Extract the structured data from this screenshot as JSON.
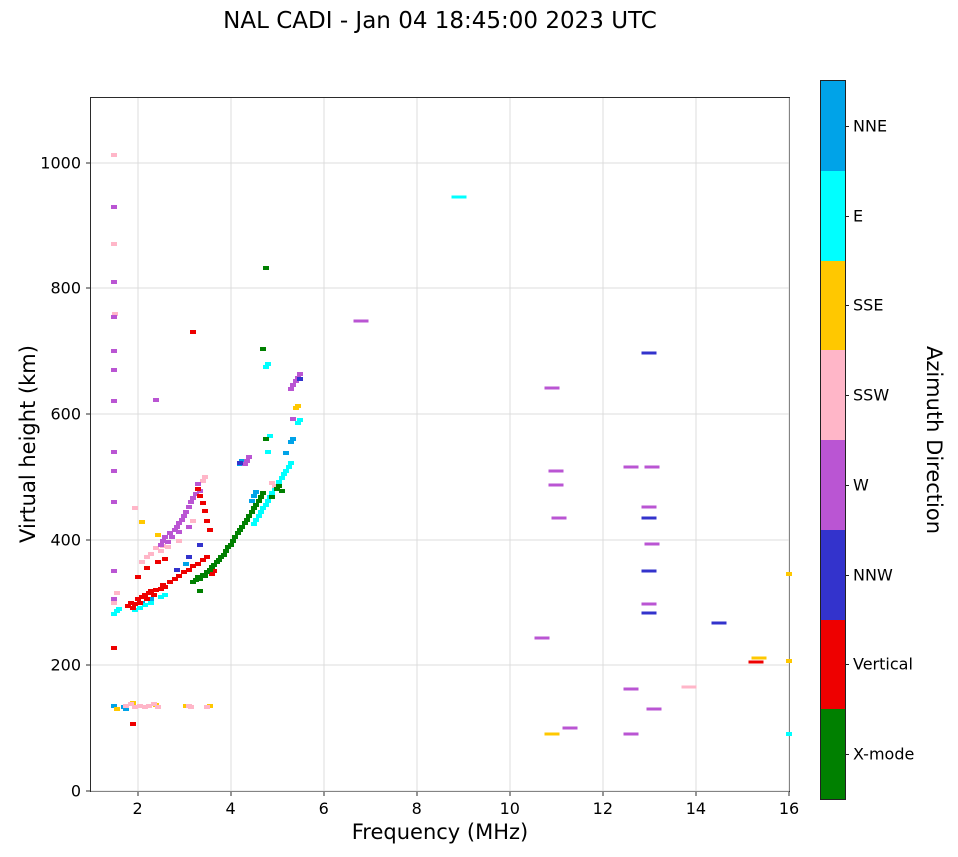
{
  "chart_data": {
    "type": "scatter",
    "title": "NAL CADI - Jan 04 18:45:00 2023 UTC",
    "xlabel": "Frequency (MHz)",
    "ylabel": "Virtual height (km)",
    "xlim": [
      1,
      16
    ],
    "ylim": [
      0,
      1103
    ],
    "xticks": [
      2,
      4,
      6,
      8,
      10,
      12,
      14,
      16
    ],
    "yticks": [
      0,
      200,
      400,
      600,
      800,
      1000
    ],
    "grid": true,
    "point_units": {
      "x": "MHz",
      "y": "km"
    },
    "legend": {
      "title": "Azimuth Direction",
      "position": "right",
      "entries": [
        {
          "label": "NNE",
          "color": "#00A3E8"
        },
        {
          "label": "E",
          "color": "#00FFFF"
        },
        {
          "label": "SSE",
          "color": "#FFC800"
        },
        {
          "label": "SSW",
          "color": "#FFB6C8"
        },
        {
          "label": "W",
          "color": "#BA55D3"
        },
        {
          "label": "NNW",
          "color": "#3333CC"
        },
        {
          "label": "Vertical",
          "color": "#EE0000"
        },
        {
          "label": "X-mode",
          "color": "#008000"
        }
      ]
    },
    "series": [
      {
        "name": "NNE",
        "color": "#00A3E8",
        "points": [
          [
            1.5,
            135
          ],
          [
            1.7,
            133
          ],
          [
            1.75,
            130
          ],
          [
            2.1,
            300
          ],
          [
            2.3,
            306
          ],
          [
            3.05,
            362
          ],
          [
            4.2,
            520
          ],
          [
            4.25,
            526
          ],
          [
            4.45,
            462
          ],
          [
            4.5,
            470
          ],
          [
            4.55,
            476
          ],
          [
            5.2,
            538
          ],
          [
            5.3,
            556
          ],
          [
            5.35,
            560
          ]
        ]
      },
      {
        "name": "E",
        "color": "#00FFFF",
        "points": [
          [
            1.5,
            282
          ],
          [
            1.55,
            286
          ],
          [
            1.6,
            290
          ],
          [
            1.95,
            288
          ],
          [
            2.05,
            292
          ],
          [
            2.15,
            296
          ],
          [
            2.3,
            300
          ],
          [
            2.5,
            308
          ],
          [
            2.6,
            312
          ],
          [
            4.5,
            425
          ],
          [
            4.55,
            432
          ],
          [
            4.6,
            438
          ],
          [
            4.65,
            444
          ],
          [
            4.7,
            450
          ],
          [
            4.75,
            456
          ],
          [
            4.8,
            462
          ],
          [
            4.85,
            468
          ],
          [
            4.9,
            474
          ],
          [
            4.95,
            480
          ],
          [
            5.0,
            486
          ],
          [
            5.05,
            492
          ],
          [
            5.1,
            498
          ],
          [
            5.15,
            504
          ],
          [
            5.2,
            510
          ],
          [
            5.25,
            516
          ],
          [
            5.3,
            522
          ],
          [
            4.8,
            540
          ],
          [
            4.85,
            565
          ],
          [
            5.45,
            585
          ],
          [
            5.5,
            590
          ],
          [
            4.75,
            675
          ],
          [
            4.8,
            680
          ],
          [
            8.9,
            945,
            1
          ],
          [
            16.0,
            90
          ]
        ]
      },
      {
        "name": "SSE",
        "color": "#FFC800",
        "points": [
          [
            1.55,
            130
          ],
          [
            1.9,
            140
          ],
          [
            2.4,
            137
          ],
          [
            3.05,
            136
          ],
          [
            3.5,
            134
          ],
          [
            3.55,
            135
          ],
          [
            2.1,
            428
          ],
          [
            2.45,
            408
          ],
          [
            5.4,
            610
          ],
          [
            5.45,
            612
          ],
          [
            10.9,
            90,
            1
          ],
          [
            15.35,
            212,
            1
          ],
          [
            16.0,
            345
          ],
          [
            16.0,
            207
          ]
        ]
      },
      {
        "name": "SSW",
        "color": "#FFB6C8",
        "points": [
          [
            1.5,
            1012
          ],
          [
            1.5,
            870
          ],
          [
            1.52,
            760
          ],
          [
            1.5,
            300
          ],
          [
            1.55,
            315
          ],
          [
            1.75,
            135
          ],
          [
            1.85,
            138
          ],
          [
            1.95,
            134
          ],
          [
            2.05,
            136
          ],
          [
            2.15,
            133
          ],
          [
            2.25,
            136
          ],
          [
            2.35,
            138
          ],
          [
            2.45,
            134
          ],
          [
            3.1,
            136
          ],
          [
            3.15,
            134
          ],
          [
            3.5,
            133
          ],
          [
            2.1,
            364
          ],
          [
            2.2,
            372
          ],
          [
            2.3,
            378
          ],
          [
            2.4,
            386
          ],
          [
            2.5,
            382
          ],
          [
            2.55,
            390
          ],
          [
            2.65,
            388
          ],
          [
            2.9,
            398
          ],
          [
            3.2,
            430
          ],
          [
            3.4,
            494
          ],
          [
            3.45,
            500
          ],
          [
            4.9,
            490
          ],
          [
            4.95,
            486
          ],
          [
            1.95,
            450
          ],
          [
            13.85,
            165,
            1
          ]
        ]
      },
      {
        "name": "W",
        "color": "#BA55D3",
        "points": [
          [
            1.5,
            930
          ],
          [
            1.5,
            810
          ],
          [
            1.5,
            755
          ],
          [
            1.5,
            700
          ],
          [
            1.5,
            670
          ],
          [
            1.5,
            620
          ],
          [
            1.5,
            540
          ],
          [
            1.5,
            510
          ],
          [
            1.5,
            460
          ],
          [
            1.5,
            350
          ],
          [
            1.5,
            305
          ],
          [
            2.4,
            622
          ],
          [
            2.5,
            392
          ],
          [
            2.55,
            398
          ],
          [
            2.6,
            404
          ],
          [
            2.65,
            396
          ],
          [
            2.7,
            410
          ],
          [
            2.75,
            404
          ],
          [
            2.8,
            416
          ],
          [
            2.85,
            420
          ],
          [
            2.9,
            426
          ],
          [
            2.95,
            432
          ],
          [
            3.0,
            438
          ],
          [
            3.05,
            444
          ],
          [
            3.1,
            452
          ],
          [
            3.15,
            460
          ],
          [
            3.2,
            466
          ],
          [
            3.25,
            472
          ],
          [
            3.3,
            488
          ],
          [
            3.1,
            420
          ],
          [
            2.9,
            412
          ],
          [
            3.35,
            478
          ],
          [
            4.3,
            520
          ],
          [
            4.35,
            526
          ],
          [
            4.4,
            532
          ],
          [
            5.3,
            640
          ],
          [
            5.35,
            646
          ],
          [
            5.4,
            652
          ],
          [
            5.45,
            658
          ],
          [
            5.5,
            664
          ],
          [
            5.35,
            592
          ],
          [
            6.8,
            748,
            1
          ],
          [
            10.7,
            243,
            1
          ],
          [
            10.9,
            642,
            1
          ],
          [
            11.0,
            510,
            1
          ],
          [
            11.0,
            487,
            1
          ],
          [
            11.05,
            435,
            1
          ],
          [
            11.3,
            100,
            1
          ],
          [
            12.6,
            515,
            1
          ],
          [
            12.6,
            162,
            1
          ],
          [
            12.6,
            90,
            1
          ],
          [
            13.05,
            515,
            1
          ],
          [
            13.0,
            452,
            1
          ],
          [
            13.05,
            393,
            1
          ],
          [
            13.0,
            297,
            1
          ],
          [
            13.1,
            130,
            1
          ]
        ]
      },
      {
        "name": "NNW",
        "color": "#3333CC",
        "points": [
          [
            2.85,
            352
          ],
          [
            3.1,
            372
          ],
          [
            3.35,
            392
          ],
          [
            4.2,
            522
          ],
          [
            5.5,
            655
          ],
          [
            13.0,
            697,
            1
          ],
          [
            13.0,
            435,
            1
          ],
          [
            13.0,
            350,
            1
          ],
          [
            13.0,
            283,
            1
          ],
          [
            14.5,
            267,
            1
          ]
        ]
      },
      {
        "name": "Vertical",
        "color": "#EE0000",
        "points": [
          [
            1.8,
            295
          ],
          [
            1.85,
            300
          ],
          [
            1.9,
            292
          ],
          [
            1.95,
            298
          ],
          [
            2.0,
            305
          ],
          [
            2.05,
            300
          ],
          [
            2.1,
            308
          ],
          [
            2.15,
            312
          ],
          [
            2.2,
            305
          ],
          [
            2.25,
            315
          ],
          [
            2.3,
            318
          ],
          [
            2.35,
            312
          ],
          [
            2.4,
            320
          ],
          [
            2.5,
            322
          ],
          [
            2.55,
            328
          ],
          [
            2.6,
            325
          ],
          [
            2.7,
            332
          ],
          [
            2.8,
            338
          ],
          [
            2.9,
            342
          ],
          [
            3.0,
            348
          ],
          [
            3.1,
            352
          ],
          [
            3.2,
            358
          ],
          [
            3.3,
            362
          ],
          [
            3.4,
            368
          ],
          [
            3.5,
            372
          ],
          [
            3.6,
            345
          ],
          [
            3.65,
            350
          ],
          [
            2.0,
            340
          ],
          [
            2.2,
            355
          ],
          [
            2.45,
            365
          ],
          [
            2.6,
            370
          ],
          [
            3.3,
            480
          ],
          [
            3.35,
            470
          ],
          [
            3.4,
            458
          ],
          [
            3.45,
            445
          ],
          [
            3.5,
            430
          ],
          [
            3.55,
            415
          ],
          [
            3.2,
            730
          ],
          [
            1.9,
            107
          ],
          [
            1.5,
            227
          ],
          [
            15.3,
            205,
            1
          ]
        ]
      },
      {
        "name": "X-mode",
        "color": "#008000",
        "points": [
          [
            3.2,
            332
          ],
          [
            3.25,
            336
          ],
          [
            3.3,
            340
          ],
          [
            3.35,
            338
          ],
          [
            3.4,
            344
          ],
          [
            3.45,
            342
          ],
          [
            3.5,
            348
          ],
          [
            3.55,
            352
          ],
          [
            3.6,
            356
          ],
          [
            3.65,
            360
          ],
          [
            3.7,
            364
          ],
          [
            3.75,
            368
          ],
          [
            3.8,
            372
          ],
          [
            3.85,
            376
          ],
          [
            3.9,
            382
          ],
          [
            3.95,
            388
          ],
          [
            4.0,
            392
          ],
          [
            4.05,
            398
          ],
          [
            4.1,
            404
          ],
          [
            4.15,
            410
          ],
          [
            4.2,
            415
          ],
          [
            4.25,
            420
          ],
          [
            4.3,
            426
          ],
          [
            4.35,
            432
          ],
          [
            4.4,
            438
          ],
          [
            4.45,
            444
          ],
          [
            4.5,
            450
          ],
          [
            4.55,
            456
          ],
          [
            4.6,
            462
          ],
          [
            4.65,
            468
          ],
          [
            4.7,
            474
          ],
          [
            4.75,
            833
          ],
          [
            4.7,
            703
          ],
          [
            4.75,
            560
          ],
          [
            5.0,
            480
          ],
          [
            5.05,
            485
          ],
          [
            5.1,
            478
          ],
          [
            4.9,
            468
          ],
          [
            3.35,
            318
          ]
        ]
      }
    ]
  }
}
